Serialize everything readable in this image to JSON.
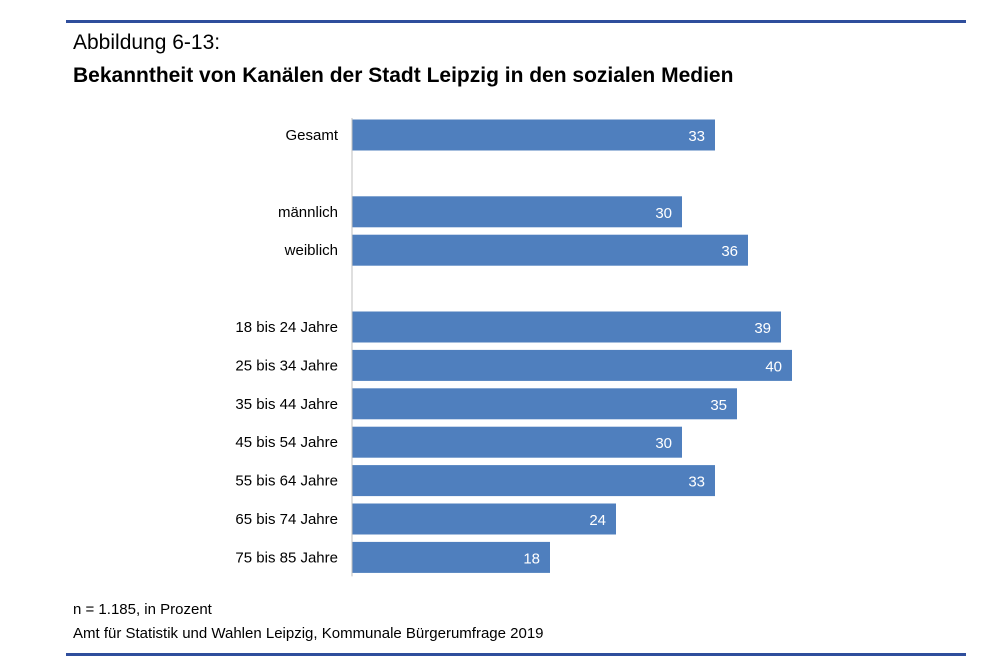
{
  "figure_label": "Abbildung 6-13:",
  "chart_data": {
    "type": "bar",
    "orientation": "horizontal",
    "title": "Bekanntheit von Kanälen der Stadt Leipzig in den sozialen Medien",
    "groups": [
      {
        "categories": [
          "Gesamt"
        ],
        "values": [
          33
        ]
      },
      {
        "categories": [
          "männlich",
          "weiblich"
        ],
        "values": [
          30,
          36
        ]
      },
      {
        "categories": [
          "18 bis 24 Jahre",
          "25 bis 34 Jahre",
          "35 bis 44 Jahre",
          "45 bis 54 Jahre",
          "55 bis 64 Jahre",
          "65 bis 74 Jahre",
          "75 bis 85 Jahre"
        ],
        "values": [
          39,
          40,
          35,
          30,
          33,
          24,
          18
        ]
      }
    ],
    "xlim": [
      0,
      40
    ],
    "data_labels": true,
    "grid": false,
    "bar_color": "#4f7fbe"
  },
  "note": "n = 1.185, in Prozent",
  "source": "Amt für Statistik und Wahlen Leipzig, Kommunale Bürgerumfrage 2019",
  "rule_color": "#2f4e9c"
}
